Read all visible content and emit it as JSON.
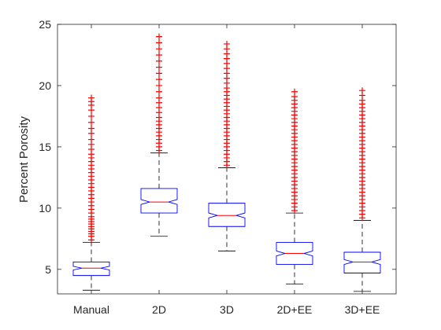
{
  "chart_data": {
    "type": "boxplot",
    "title": "",
    "xlabel": "",
    "ylabel": "Percent Porosity",
    "ylim": [
      3,
      25
    ],
    "yticks": [
      5,
      10,
      15,
      20,
      25
    ],
    "notched": true,
    "grid": false,
    "legend": "none",
    "categories": [
      "Manual",
      "2D",
      "3D",
      "2D+EE",
      "3D+EE"
    ],
    "boxes": [
      {
        "category": "Manual",
        "whisker_low": 3.3,
        "q1": 4.5,
        "median": 5.1,
        "q3": 5.6,
        "whisker_high": 7.2,
        "notch_low": 4.95,
        "notch_high": 5.25,
        "outliers": [
          7.4,
          7.7,
          7.9,
          8.1,
          8.3,
          8.5,
          8.7,
          8.9,
          9.1,
          9.3,
          9.6,
          9.9,
          10.2,
          10.5,
          10.8,
          11.1,
          11.4,
          11.7,
          12.0,
          12.3,
          12.6,
          12.9,
          13.2,
          13.5,
          13.8,
          14.1,
          14.4,
          14.8,
          15.2,
          15.6,
          16.1,
          16.5,
          17.0,
          17.5,
          18.0,
          18.4,
          18.7,
          19.0
        ]
      },
      {
        "category": "2D",
        "whisker_low": 7.7,
        "q1": 9.6,
        "median": 10.5,
        "q3": 11.6,
        "whisker_high": 14.5,
        "notch_low": 10.3,
        "notch_high": 10.7,
        "outliers": [
          14.7,
          15.0,
          15.3,
          15.6,
          15.9,
          16.2,
          16.5,
          16.8,
          17.1,
          17.4,
          17.8,
          18.2,
          18.6,
          19.0,
          19.5,
          20.0,
          20.5,
          21.0,
          21.5,
          22.0,
          22.5,
          23.0,
          23.5,
          24.0
        ]
      },
      {
        "category": "3D",
        "whisker_low": 6.5,
        "q1": 8.5,
        "median": 9.4,
        "q3": 10.4,
        "whisker_high": 13.3,
        "notch_low": 9.2,
        "notch_high": 9.6,
        "outliers": [
          13.5,
          13.8,
          14.1,
          14.4,
          14.7,
          15.0,
          15.3,
          15.6,
          15.9,
          16.2,
          16.5,
          16.8,
          17.1,
          17.4,
          17.7,
          18.0,
          18.3,
          18.6,
          18.9,
          19.2,
          19.5,
          19.8,
          20.2,
          20.6,
          21.0,
          21.4,
          21.8,
          22.2,
          22.6,
          23.0,
          23.4
        ]
      },
      {
        "category": "2D+EE",
        "whisker_low": 3.8,
        "q1": 5.4,
        "median": 6.3,
        "q3": 7.2,
        "whisker_high": 9.6,
        "notch_low": 6.1,
        "notch_high": 6.5,
        "outliers": [
          9.8,
          10.1,
          10.4,
          10.7,
          11.0,
          11.3,
          11.6,
          11.9,
          12.2,
          12.5,
          12.8,
          13.1,
          13.4,
          13.7,
          14.0,
          14.3,
          14.6,
          14.9,
          15.2,
          15.5,
          15.8,
          16.1,
          16.4,
          16.7,
          17.0,
          17.3,
          17.6,
          17.9,
          18.2,
          18.5,
          18.8,
          19.1,
          19.5
        ]
      },
      {
        "category": "3D+EE",
        "whisker_low": 3.2,
        "q1": 4.7,
        "median": 5.6,
        "q3": 6.4,
        "whisker_high": 9.0,
        "notch_low": 5.4,
        "notch_high": 5.8,
        "outliers": [
          9.2,
          9.5,
          9.8,
          10.1,
          10.4,
          10.7,
          11.0,
          11.3,
          11.6,
          11.9,
          12.2,
          12.5,
          12.8,
          13.1,
          13.4,
          13.7,
          14.0,
          14.3,
          14.6,
          14.9,
          15.2,
          15.5,
          15.8,
          16.1,
          16.4,
          16.7,
          17.0,
          17.3,
          17.6,
          17.9,
          18.2,
          18.5,
          18.8,
          19.2,
          19.6
        ]
      }
    ],
    "colors": {
      "box": "#0000ff",
      "median": "#ff0000",
      "whisker": "#000000",
      "outlier": "#ff0000",
      "axis": "#262626"
    }
  }
}
